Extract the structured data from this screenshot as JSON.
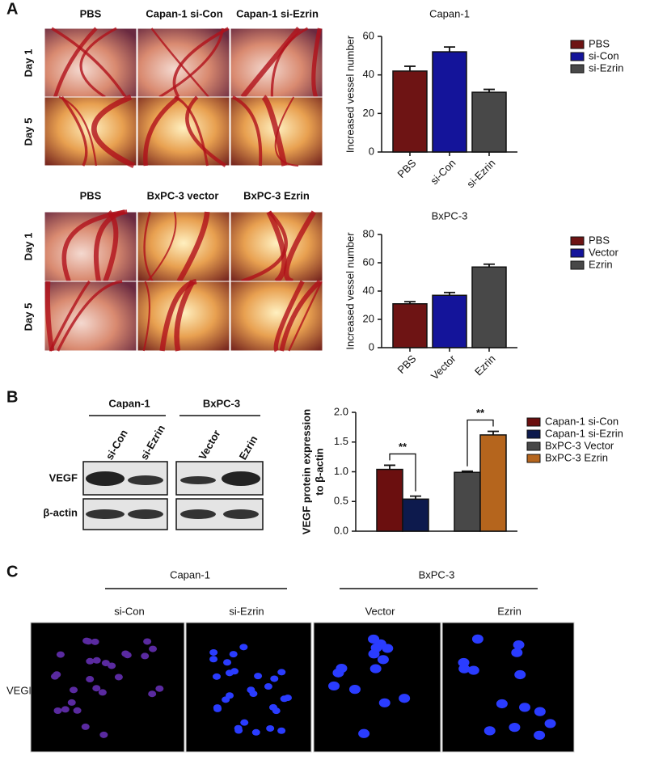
{
  "panels": {
    "a": "A",
    "b": "B",
    "c": "C"
  },
  "panel_a": {
    "top_columns": [
      "PBS",
      "Capan-1 si-Con",
      "Capan-1 si-Ezrin"
    ],
    "top_rows": [
      "Day 1",
      "Day 5"
    ],
    "bottom_columns": [
      "PBS",
      "BxPC-3 vector",
      "BxPC-3 Ezrin"
    ],
    "bottom_rows": [
      "Day 1",
      "Day 5"
    ]
  },
  "panel_b": {
    "groups": [
      "Capan-1",
      "BxPC-3"
    ],
    "lanes": [
      "si-Con",
      "si-Ezrin",
      "Vector",
      "Ezrin"
    ],
    "rows": [
      "VEGF",
      "β-actin"
    ]
  },
  "panel_c": {
    "groups": [
      "Capan-1",
      "BxPC-3"
    ],
    "columns": [
      "si-Con",
      "si-Ezrin",
      "Vector",
      "Ezrin"
    ],
    "row": "VEGF"
  },
  "chart_data": [
    {
      "type": "bar",
      "title": "Capan-1",
      "y_label": "Increased vessel number",
      "categories": [
        "PBS",
        "si-Con",
        "si-Ezrin"
      ],
      "values": [
        42,
        52,
        31
      ],
      "errors": [
        2.5,
        2.5,
        1.5
      ],
      "colors": [
        "#6e1414",
        "#14149a",
        "#484848"
      ],
      "ylim": [
        0,
        60
      ],
      "yticks": [
        0,
        20,
        40,
        60
      ],
      "legend": "right",
      "show_x_ticks": true
    },
    {
      "type": "bar",
      "title": "BxPC-3",
      "y_label": "Increased vessel number",
      "categories": [
        "PBS",
        "Vector",
        "Ezrin"
      ],
      "values": [
        31,
        37,
        57
      ],
      "errors": [
        1.5,
        2,
        2
      ],
      "colors": [
        "#6e1414",
        "#14149a",
        "#484848"
      ],
      "ylim": [
        0,
        80
      ],
      "yticks": [
        0,
        20,
        40,
        60,
        80
      ],
      "legend": "right",
      "show_x_ticks": true
    },
    {
      "type": "bar",
      "y_label": [
        "VEGF protein expression",
        "to β-actin"
      ],
      "categories": [
        "Capan-1 si-Con",
        "Capan-1 si-Ezrin",
        "BxPC-3 Vector",
        "BxPC-3 Ezrin"
      ],
      "values": [
        1.04,
        0.54,
        0.99,
        1.62
      ],
      "errors": [
        0.07,
        0.05,
        0.02,
        0.06
      ],
      "colors": [
        "#6b0f0f",
        "#0d1a4d",
        "#484848",
        "#b5651d"
      ],
      "ylim": [
        0,
        2.0
      ],
      "yticks": [
        {
          "value": 0,
          "label": "0.0"
        },
        {
          "value": 0.5,
          "label": "0.5"
        },
        {
          "value": 1,
          "label": "1.0"
        },
        {
          "value": 1.5,
          "label": "1.5"
        },
        {
          "value": 2,
          "label": "2.0"
        }
      ],
      "annotations": [
        "**",
        "**"
      ],
      "legend": "right",
      "show_x_ticks": false
    }
  ]
}
